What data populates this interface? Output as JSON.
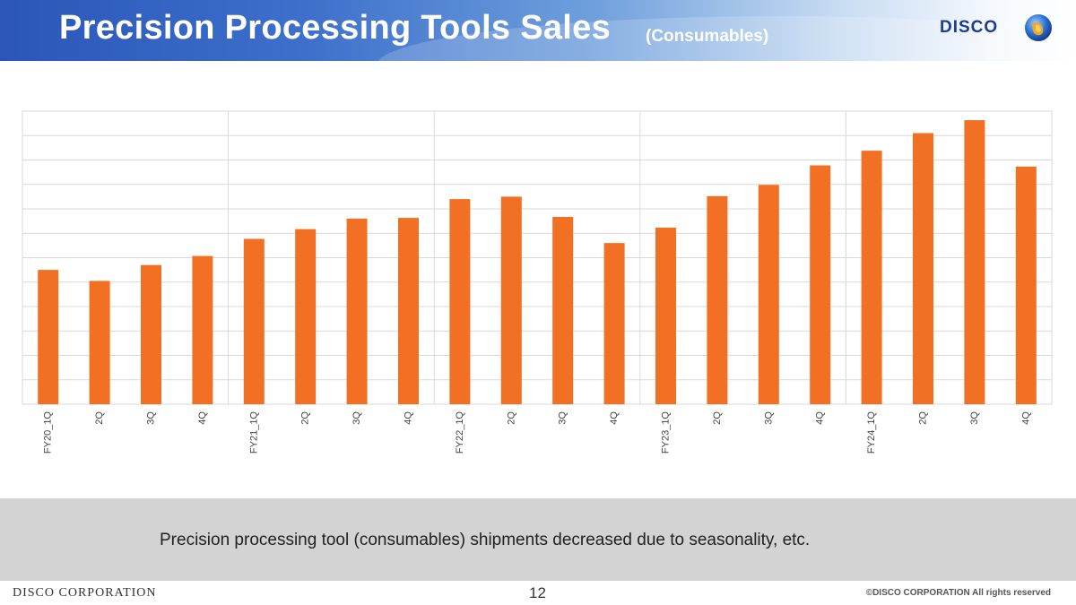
{
  "header": {
    "title": "Precision Processing Tools Sales",
    "subtitle": "(Consumables)"
  },
  "logo": {
    "text": "DISCO",
    "icon": "disco-globe-logo"
  },
  "colors": {
    "bar": "#f27023",
    "header_start": "#2b56b8",
    "summary_band": "#d3d3d3",
    "gridline": "#d9d9d9"
  },
  "chart_data": {
    "type": "bar",
    "title": "",
    "xlabel": "",
    "ylabel": "",
    "ylim": [
      0,
      12
    ],
    "grid": true,
    "legend": "none",
    "y_tick_labels_shown": false,
    "categories": [
      "FY20_1Q",
      "2Q",
      "3Q",
      "4Q",
      "FY21_1Q",
      "2Q",
      "3Q",
      "4Q",
      "FY22_1Q",
      "2Q",
      "3Q",
      "4Q",
      "FY23_1Q",
      "2Q",
      "3Q",
      "4Q",
      "FY24_1Q",
      "2Q",
      "3Q",
      "4Q"
    ],
    "values": [
      5.5,
      5.05,
      5.7,
      6.07,
      6.77,
      7.17,
      7.6,
      7.63,
      8.4,
      8.5,
      7.67,
      6.6,
      7.23,
      8.52,
      8.98,
      9.78,
      10.38,
      11.1,
      11.63,
      9.73
    ],
    "fiscal_year_groups": 5
  },
  "summary": {
    "text": "Precision processing tool (consumables) shipments decreased due to seasonality, etc."
  },
  "footer": {
    "company": "DISCO CORPORATION",
    "page_number": "12",
    "copyright": "©DISCO CORPORATION   All rights reserved"
  }
}
